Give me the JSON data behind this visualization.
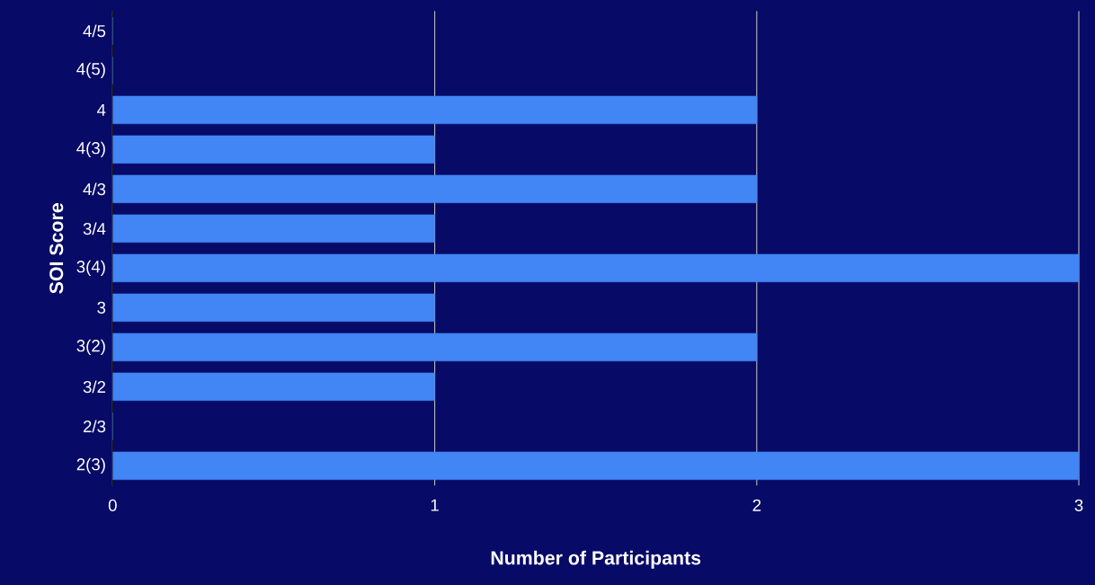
{
  "chart_data": {
    "type": "bar",
    "orientation": "horizontal",
    "categories": [
      "4/5",
      "4(5)",
      "4",
      "4(3)",
      "4/3",
      "3/4",
      "3(4)",
      "3",
      "3(2)",
      "3/2",
      "2/3",
      "2(3)"
    ],
    "values": [
      0,
      0,
      2,
      1,
      2,
      1,
      3,
      1,
      2,
      1,
      0,
      3
    ],
    "color": "#4285f4",
    "xlim": [
      0,
      3
    ],
    "xticks": [
      0,
      1,
      2,
      3
    ],
    "grid": "x",
    "xlabel": "Number of Participants",
    "ylabel": "SOI Score"
  }
}
